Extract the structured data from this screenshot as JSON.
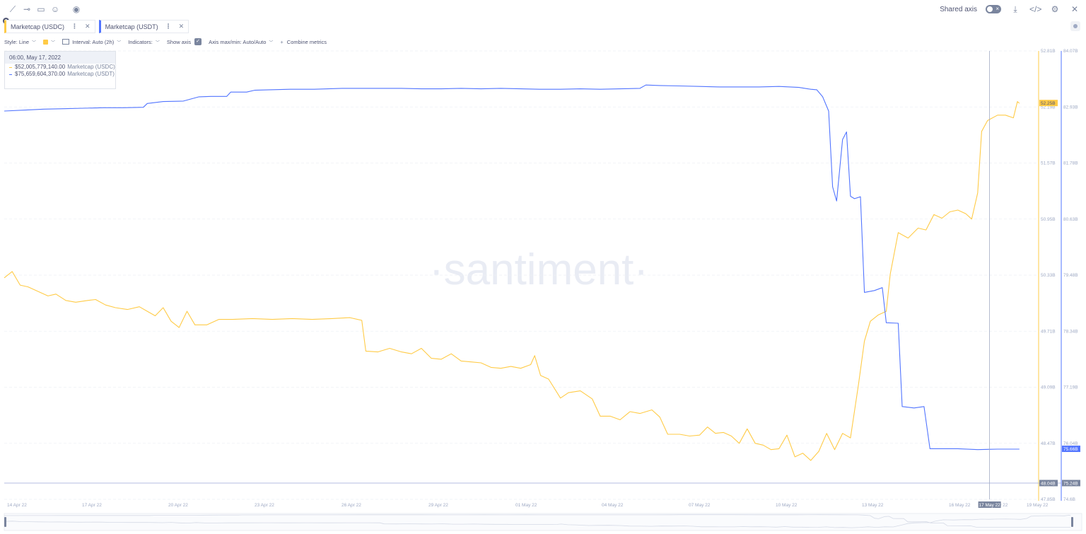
{
  "toolbar": {
    "left_icons": [
      "line-tool-icon",
      "horizontal-ray-icon",
      "note-icon",
      "emoji-icon",
      "eye-icon"
    ],
    "shared_axis_label": "Shared axis",
    "right_icons": [
      "download-icon",
      "embed-code-icon",
      "gear-icon",
      "close-icon"
    ]
  },
  "tabs": [
    {
      "label": "Marketcap (USDC)",
      "color": "#ffcb47"
    },
    {
      "label": "Marketcap (USDT)",
      "color": "#5275ff"
    }
  ],
  "controls": {
    "style": "Style: Line",
    "interval": "Interval: Auto (2h)",
    "indicators": "Indicators:",
    "show_axis": "Show axis",
    "axis_maxmin": "Axis max/min: Auto/Auto",
    "combine": "Combine metrics"
  },
  "tooltip": {
    "date": "06:00, May 17, 2022",
    "rows": [
      {
        "value": "$52,005,779,140.00",
        "name": "Marketcap (USDC)",
        "color": "#ffcb47"
      },
      {
        "value": "$75,659,604,370.00",
        "name": "Marketcap (USDT)",
        "color": "#5275ff"
      }
    ]
  },
  "watermark": "·santiment·",
  "chart_data": {
    "type": "line",
    "x_ticks": [
      "14 Apr 22",
      "17 Apr 22",
      "20 Apr 22",
      "23 Apr 22",
      "26 Apr 22",
      "29 Apr 22",
      "01 May 22",
      "04 May 22",
      "07 May 22",
      "10 May 22",
      "13 May 22",
      "16 May 22",
      "17 May 22",
      "19 May 22"
    ],
    "y_axis_usdc": {
      "range": [
        47.85,
        52.81
      ],
      "ticks": [
        "52.81B",
        "52.19B",
        "51.57B",
        "50.95B",
        "50.33B",
        "49.71B",
        "49.09B",
        "48.47B",
        "47.85B"
      ],
      "current_label": "52.25B",
      "marker_label": "48.04B"
    },
    "y_axis_usdt": {
      "range": [
        74.6,
        84.07
      ],
      "ticks": [
        "84.07B",
        "82.93B",
        "81.78B",
        "80.63B",
        "79.48B",
        "78.34B",
        "77.19B",
        "76.04B",
        "74.6B"
      ],
      "current_label": "75.66B",
      "marker_label": "75.24B"
    },
    "series": [
      {
        "name": "Marketcap (USDC)",
        "color": "#ffcb47",
        "axis": "usdc",
        "points": [
          [
            0,
            50.3
          ],
          [
            0.4,
            50.37
          ],
          [
            0.8,
            50.22
          ],
          [
            1.2,
            50.2
          ],
          [
            1.6,
            50.16
          ],
          [
            2.2,
            50.1
          ],
          [
            2.6,
            50.12
          ],
          [
            3.1,
            50.05
          ],
          [
            3.6,
            50.03
          ],
          [
            4.2,
            50.05
          ],
          [
            4.6,
            50.06
          ],
          [
            5.1,
            50.0
          ],
          [
            5.6,
            49.97
          ],
          [
            6.2,
            49.95
          ],
          [
            6.8,
            49.98
          ],
          [
            7.2,
            49.93
          ],
          [
            7.6,
            49.88
          ],
          [
            8.0,
            49.97
          ],
          [
            8.4,
            49.82
          ],
          [
            8.8,
            49.75
          ],
          [
            9.2,
            49.93
          ],
          [
            9.6,
            49.78
          ],
          [
            10.2,
            49.78
          ],
          [
            10.8,
            49.84
          ],
          [
            11.5,
            49.84
          ],
          [
            12.5,
            49.85
          ],
          [
            13.5,
            49.84
          ],
          [
            14.5,
            49.85
          ],
          [
            15.5,
            49.84
          ],
          [
            16.5,
            49.85
          ],
          [
            17.4,
            49.86
          ],
          [
            18.0,
            49.83
          ],
          [
            18.2,
            49.49
          ],
          [
            18.8,
            49.48
          ],
          [
            19.4,
            49.52
          ],
          [
            20.0,
            49.48
          ],
          [
            20.5,
            49.46
          ],
          [
            21.0,
            49.52
          ],
          [
            21.5,
            49.41
          ],
          [
            22.0,
            49.4
          ],
          [
            22.5,
            49.46
          ],
          [
            23.0,
            49.38
          ],
          [
            23.5,
            49.37
          ],
          [
            24.0,
            49.36
          ],
          [
            24.5,
            49.31
          ],
          [
            25.0,
            49.3
          ],
          [
            25.5,
            49.32
          ],
          [
            26.0,
            49.3
          ],
          [
            26.5,
            49.34
          ],
          [
            26.7,
            49.44
          ],
          [
            27.0,
            49.22
          ],
          [
            27.4,
            49.18
          ],
          [
            28.0,
            48.97
          ],
          [
            28.4,
            49.03
          ],
          [
            29.0,
            49.05
          ],
          [
            29.6,
            48.96
          ],
          [
            30.0,
            48.77
          ],
          [
            30.5,
            48.77
          ],
          [
            31.0,
            48.73
          ],
          [
            31.5,
            48.82
          ],
          [
            32.0,
            48.8
          ],
          [
            32.6,
            48.84
          ],
          [
            33.0,
            48.76
          ],
          [
            33.4,
            48.57
          ],
          [
            34.0,
            48.57
          ],
          [
            34.5,
            48.55
          ],
          [
            35.0,
            48.56
          ],
          [
            35.4,
            48.65
          ],
          [
            35.8,
            48.58
          ],
          [
            36.2,
            48.59
          ],
          [
            36.6,
            48.55
          ],
          [
            37.0,
            48.47
          ],
          [
            37.4,
            48.63
          ],
          [
            37.8,
            48.47
          ],
          [
            38.2,
            48.45
          ],
          [
            38.6,
            48.4
          ],
          [
            39.0,
            48.41
          ],
          [
            39.4,
            48.56
          ],
          [
            39.8,
            48.32
          ],
          [
            40.2,
            48.36
          ],
          [
            40.6,
            48.28
          ],
          [
            41.0,
            48.38
          ],
          [
            41.4,
            48.58
          ],
          [
            41.8,
            48.4
          ],
          [
            42.2,
            48.58
          ],
          [
            42.6,
            48.53
          ],
          [
            43.0,
            49.12
          ],
          [
            43.3,
            49.6
          ],
          [
            43.6,
            49.82
          ],
          [
            44.0,
            49.89
          ],
          [
            44.4,
            49.93
          ],
          [
            44.6,
            50.34
          ],
          [
            45.0,
            50.8
          ],
          [
            45.5,
            50.74
          ],
          [
            46.0,
            50.85
          ],
          [
            46.4,
            50.83
          ],
          [
            46.8,
            51.0
          ],
          [
            47.2,
            50.96
          ],
          [
            47.6,
            51.03
          ],
          [
            48.0,
            51.05
          ],
          [
            48.4,
            51.01
          ],
          [
            48.7,
            50.95
          ],
          [
            49.0,
            51.24
          ],
          [
            49.2,
            51.92
          ],
          [
            49.5,
            52.04
          ],
          [
            50.0,
            52.1
          ],
          [
            50.4,
            52.1
          ],
          [
            50.8,
            52.07
          ],
          [
            51.0,
            52.25
          ],
          [
            51.1,
            52.23
          ]
        ]
      },
      {
        "name": "Marketcap (USDT)",
        "color": "#5275ff",
        "axis": "usdt",
        "points": [
          [
            0,
            82.8
          ],
          [
            1,
            82.82
          ],
          [
            2,
            82.84
          ],
          [
            3,
            82.85
          ],
          [
            4,
            82.86
          ],
          [
            5,
            82.87
          ],
          [
            6,
            82.87
          ],
          [
            7,
            82.88
          ],
          [
            7.2,
            82.96
          ],
          [
            8,
            83.0
          ],
          [
            9,
            83.01
          ],
          [
            9.8,
            83.1
          ],
          [
            10.4,
            83.11
          ],
          [
            11.2,
            83.11
          ],
          [
            11.4,
            83.2
          ],
          [
            12.2,
            83.2
          ],
          [
            12.6,
            83.24
          ],
          [
            13.4,
            83.25
          ],
          [
            14.4,
            83.26
          ],
          [
            15.6,
            83.26
          ],
          [
            17,
            83.28
          ],
          [
            18.5,
            83.28
          ],
          [
            20,
            83.28
          ],
          [
            21,
            83.27
          ],
          [
            22,
            83.27
          ],
          [
            23,
            83.28
          ],
          [
            24,
            83.27
          ],
          [
            25,
            83.28
          ],
          [
            26,
            83.27
          ],
          [
            27,
            83.26
          ],
          [
            28,
            83.26
          ],
          [
            29,
            83.27
          ],
          [
            30,
            83.26
          ],
          [
            31,
            83.27
          ],
          [
            32,
            83.28
          ],
          [
            32.3,
            83.35
          ],
          [
            33,
            83.34
          ],
          [
            34,
            83.33
          ],
          [
            35,
            83.32
          ],
          [
            36,
            83.31
          ],
          [
            37,
            83.31
          ],
          [
            38,
            83.31
          ],
          [
            39,
            83.32
          ],
          [
            40,
            83.3
          ],
          [
            40.6,
            83.26
          ],
          [
            40.9,
            83.25
          ],
          [
            41.2,
            83.1
          ],
          [
            41.5,
            82.8
          ],
          [
            41.7,
            81.2
          ],
          [
            41.9,
            80.9
          ],
          [
            42.2,
            82.2
          ],
          [
            42.4,
            82.36
          ],
          [
            42.6,
            81.0
          ],
          [
            42.8,
            80.95
          ],
          [
            43.1,
            80.99
          ],
          [
            43.3,
            78.97
          ],
          [
            43.8,
            79.01
          ],
          [
            44.2,
            79.07
          ],
          [
            44.4,
            78.33
          ],
          [
            45.0,
            78.32
          ],
          [
            45.2,
            76.56
          ],
          [
            45.8,
            76.53
          ],
          [
            46.3,
            76.56
          ],
          [
            46.6,
            75.67
          ],
          [
            48,
            75.67
          ],
          [
            49,
            75.65
          ],
          [
            50,
            75.66
          ],
          [
            51.1,
            75.66
          ]
        ]
      }
    ],
    "crosshair_x": 49.6,
    "grid": true
  },
  "navigator_label": ""
}
